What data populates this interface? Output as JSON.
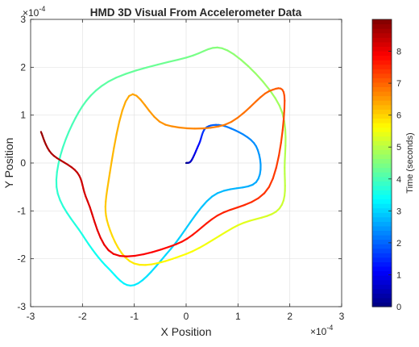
{
  "chart_data": {
    "type": "line",
    "title": "HMD 3D Visual From Accelerometer Data",
    "xlabel": "X Position",
    "ylabel": "Y Position",
    "x_exponent_label": "×10",
    "x_exponent_power": "-4",
    "y_exponent_label": "×10",
    "y_exponent_power": "-4",
    "xlim": [
      -3,
      3
    ],
    "ylim": [
      -3,
      3
    ],
    "xticks": [
      "-3",
      "-2",
      "-1",
      "0",
      "1",
      "2",
      "3"
    ],
    "yticks": [
      "-3",
      "-2",
      "-1",
      "0",
      "1",
      "2",
      "3"
    ],
    "grid": true,
    "colorbar": {
      "label": "Time (seconds)",
      "range": [
        0,
        9
      ],
      "ticks": [
        "0",
        "1",
        "2",
        "3",
        "4",
        "5",
        "6",
        "7",
        "8"
      ],
      "colormap": "jet"
    },
    "trajectory_units": "×10^-4",
    "trajectory": [
      {
        "t": 0.0,
        "x": 0.0,
        "y": 0.0
      },
      {
        "t": 0.6,
        "x": 0.1,
        "y": 0.05
      },
      {
        "t": 1.2,
        "x": 0.25,
        "y": 0.4
      },
      {
        "t": 1.8,
        "x": 0.4,
        "y": 0.75
      },
      {
        "t": 2.2,
        "x": 0.8,
        "y": 0.75
      },
      {
        "t": 2.4,
        "x": 1.35,
        "y": 0.35
      },
      {
        "t": 2.6,
        "x": 1.35,
        "y": -0.4
      },
      {
        "t": 2.8,
        "x": 0.5,
        "y": -0.7
      },
      {
        "t": 3.0,
        "x": -0.3,
        "y": -1.8
      },
      {
        "t": 3.2,
        "x": -1.0,
        "y": -2.55
      },
      {
        "t": 3.4,
        "x": -1.5,
        "y": -2.2
      },
      {
        "t": 3.6,
        "x": -2.0,
        "y": -1.5
      },
      {
        "t": 3.8,
        "x": -2.5,
        "y": -0.5
      },
      {
        "t": 4.0,
        "x": -2.2,
        "y": 0.8
      },
      {
        "t": 4.2,
        "x": -1.5,
        "y": 1.7
      },
      {
        "t": 4.4,
        "x": 0.0,
        "y": 2.2
      },
      {
        "t": 4.6,
        "x": 0.8,
        "y": 2.35
      },
      {
        "t": 4.8,
        "x": 1.8,
        "y": 1.2
      },
      {
        "t": 5.0,
        "x": 1.9,
        "y": -0.1
      },
      {
        "t": 5.2,
        "x": 1.8,
        "y": -0.95
      },
      {
        "t": 5.4,
        "x": 1.0,
        "y": -1.3
      },
      {
        "t": 5.6,
        "x": 0.0,
        "y": -1.9
      },
      {
        "t": 5.8,
        "x": -1.0,
        "y": -2.1
      },
      {
        "t": 6.0,
        "x": -1.5,
        "y": -1.3
      },
      {
        "t": 6.2,
        "x": -1.5,
        "y": -0.4
      },
      {
        "t": 6.4,
        "x": -1.1,
        "y": 1.4
      },
      {
        "t": 6.6,
        "x": -0.4,
        "y": 0.8
      },
      {
        "t": 6.8,
        "x": 0.75,
        "y": 0.8
      },
      {
        "t": 7.0,
        "x": 1.6,
        "y": 1.5
      },
      {
        "t": 7.2,
        "x": 1.9,
        "y": 1.3
      },
      {
        "t": 7.4,
        "x": 1.6,
        "y": -0.5
      },
      {
        "t": 7.6,
        "x": 0.6,
        "y": -1.1
      },
      {
        "t": 7.8,
        "x": -0.2,
        "y": -1.7
      },
      {
        "t": 8.0,
        "x": -1.4,
        "y": -1.9
      },
      {
        "t": 8.2,
        "x": -1.9,
        "y": -0.8
      },
      {
        "t": 8.4,
        "x": -2.1,
        "y": -0.2
      },
      {
        "t": 8.6,
        "x": -2.6,
        "y": 0.2
      },
      {
        "t": 8.8,
        "x": -2.8,
        "y": 0.65
      }
    ]
  }
}
